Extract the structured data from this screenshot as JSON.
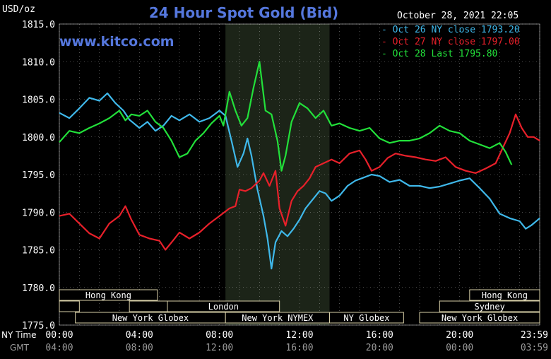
{
  "header": {
    "title": "24 Hour Spot Gold (Bid)",
    "site": "www.kitco.com",
    "timestamp": "October 28, 2021 22:05",
    "units": "USD/oz"
  },
  "colors": {
    "background": "#000000",
    "oct26": "#3fb8ea",
    "oct27": "#e8202a",
    "oct28": "#22e03a",
    "session_shade": "#1c2418",
    "grid": "#ffffff",
    "title": "#5577dd",
    "site": "#5577dd"
  },
  "axis_labels": {
    "ny_time": "NY Time",
    "gmt": "GMT"
  },
  "sessions": [
    {
      "label": "Hong Kong",
      "row": 0,
      "start": 0,
      "end": 4.9
    },
    {
      "label": "",
      "row": 1,
      "start": 0,
      "end": 1.0
    },
    {
      "label": "",
      "row": 1,
      "start": 3.5,
      "end": 5.4
    },
    {
      "label": "London",
      "row": 1,
      "start": 5.4,
      "end": 11.0
    },
    {
      "label": "New York Globex",
      "row": 2,
      "start": 0.8,
      "end": 8.3
    },
    {
      "label": "New York NYMEX",
      "row": 2,
      "start": 8.3,
      "end": 13.5
    },
    {
      "label": "NY Globex",
      "row": 2,
      "start": 13.5,
      "end": 17.2
    },
    {
      "label": "Hong Kong",
      "row": 0,
      "start": 20.5,
      "end": 24.0
    },
    {
      "label": "Sydney",
      "row": 1,
      "start": 19.0,
      "end": 24.0
    },
    {
      "label": "New York Globex",
      "row": 2,
      "start": 18.0,
      "end": 24.0
    }
  ],
  "chart_data": {
    "type": "line",
    "title": "24 Hour Spot Gold (Bid)",
    "ylabel": "USD/oz",
    "xlabel": "NY Time",
    "xlim": [
      0,
      24
    ],
    "ylim": [
      1775,
      1815
    ],
    "yticks": [
      "1815.0",
      "1810.0",
      "1805.0",
      "1800.0",
      "1795.0",
      "1790.0",
      "1785.0",
      "1780.0",
      "1775.0"
    ],
    "ny_ticks": [
      "00:00",
      "04:00",
      "08:00",
      "12:00",
      "16:00",
      "20:00",
      "23:59"
    ],
    "gmt_ticks": [
      "04:00",
      "08:00",
      "12:00",
      "16:00",
      "20:00",
      "00:00",
      "03:59"
    ],
    "shaded_region": [
      8.3,
      13.5
    ],
    "grid": true,
    "legend_position": "top-right",
    "series": [
      {
        "name": "Oct 26",
        "label": "Oct 26 NY close 1793.20",
        "color": "#3fb8ea",
        "points": [
          [
            0,
            1803.2
          ],
          [
            0.5,
            1802.5
          ],
          [
            1,
            1803.8
          ],
          [
            1.5,
            1805.2
          ],
          [
            2,
            1804.8
          ],
          [
            2.4,
            1805.8
          ],
          [
            2.8,
            1804.5
          ],
          [
            3.2,
            1803.5
          ],
          [
            3.5,
            1802.3
          ],
          [
            4,
            1801.2
          ],
          [
            4.4,
            1802.0
          ],
          [
            4.8,
            1800.8
          ],
          [
            5.2,
            1801.5
          ],
          [
            5.6,
            1802.8
          ],
          [
            6,
            1802.2
          ],
          [
            6.5,
            1803.0
          ],
          [
            7,
            1802.0
          ],
          [
            7.5,
            1802.5
          ],
          [
            8,
            1803.5
          ],
          [
            8.3,
            1802.8
          ],
          [
            8.6,
            1799.5
          ],
          [
            8.9,
            1796.0
          ],
          [
            9.2,
            1797.8
          ],
          [
            9.4,
            1799.8
          ],
          [
            9.6,
            1797.5
          ],
          [
            9.9,
            1793.0
          ],
          [
            10.2,
            1789.5
          ],
          [
            10.4,
            1786.5
          ],
          [
            10.6,
            1782.5
          ],
          [
            10.8,
            1786.0
          ],
          [
            11.1,
            1787.5
          ],
          [
            11.4,
            1786.8
          ],
          [
            11.7,
            1787.8
          ],
          [
            12,
            1789.0
          ],
          [
            12.3,
            1790.5
          ],
          [
            12.6,
            1791.5
          ],
          [
            13,
            1792.8
          ],
          [
            13.3,
            1792.5
          ],
          [
            13.6,
            1791.5
          ],
          [
            14,
            1792.2
          ],
          [
            14.4,
            1793.5
          ],
          [
            14.8,
            1794.2
          ],
          [
            15.2,
            1794.6
          ],
          [
            15.6,
            1795.0
          ],
          [
            16,
            1794.8
          ],
          [
            16.5,
            1794.0
          ],
          [
            17,
            1794.3
          ],
          [
            17.5,
            1793.5
          ],
          [
            18,
            1793.5
          ],
          [
            18.5,
            1793.2
          ],
          [
            19,
            1793.4
          ],
          [
            19.5,
            1793.8
          ],
          [
            20,
            1794.2
          ],
          [
            20.5,
            1794.5
          ],
          [
            21,
            1793.2
          ],
          [
            21.5,
            1791.8
          ],
          [
            22,
            1789.8
          ],
          [
            22.5,
            1789.2
          ],
          [
            23,
            1788.8
          ],
          [
            23.3,
            1787.8
          ],
          [
            23.6,
            1788.3
          ],
          [
            24,
            1789.2
          ]
        ]
      },
      {
        "name": "Oct 27",
        "label": "Oct 27 NY close 1797.00",
        "color": "#e8202a",
        "points": [
          [
            0,
            1789.5
          ],
          [
            0.5,
            1789.8
          ],
          [
            1,
            1788.5
          ],
          [
            1.5,
            1787.2
          ],
          [
            2,
            1786.5
          ],
          [
            2.5,
            1788.5
          ],
          [
            3,
            1789.5
          ],
          [
            3.3,
            1790.8
          ],
          [
            3.6,
            1789.0
          ],
          [
            4,
            1787.0
          ],
          [
            4.5,
            1786.5
          ],
          [
            5,
            1786.2
          ],
          [
            5.3,
            1785.0
          ],
          [
            5.7,
            1786.3
          ],
          [
            6,
            1787.3
          ],
          [
            6.5,
            1786.5
          ],
          [
            7,
            1787.3
          ],
          [
            7.5,
            1788.5
          ],
          [
            8,
            1789.5
          ],
          [
            8.5,
            1790.5
          ],
          [
            8.8,
            1790.8
          ],
          [
            9,
            1793.0
          ],
          [
            9.3,
            1792.8
          ],
          [
            9.6,
            1793.2
          ],
          [
            10,
            1794.2
          ],
          [
            10.2,
            1795.2
          ],
          [
            10.5,
            1793.5
          ],
          [
            10.8,
            1795.5
          ],
          [
            11,
            1790.5
          ],
          [
            11.3,
            1788.2
          ],
          [
            11.6,
            1791.5
          ],
          [
            11.9,
            1792.8
          ],
          [
            12.2,
            1793.5
          ],
          [
            12.5,
            1794.5
          ],
          [
            12.8,
            1796.0
          ],
          [
            13.2,
            1796.5
          ],
          [
            13.6,
            1797.0
          ],
          [
            14,
            1796.5
          ],
          [
            14.5,
            1797.8
          ],
          [
            15,
            1798.2
          ],
          [
            15.3,
            1797.0
          ],
          [
            15.6,
            1795.5
          ],
          [
            16,
            1796.0
          ],
          [
            16.4,
            1797.2
          ],
          [
            16.8,
            1797.8
          ],
          [
            17.3,
            1797.5
          ],
          [
            17.8,
            1797.3
          ],
          [
            18.3,
            1797.0
          ],
          [
            18.8,
            1796.8
          ],
          [
            19.3,
            1797.3
          ],
          [
            19.8,
            1796.0
          ],
          [
            20.3,
            1795.5
          ],
          [
            20.8,
            1795.2
          ],
          [
            21.3,
            1795.8
          ],
          [
            21.8,
            1796.5
          ],
          [
            22.2,
            1798.8
          ],
          [
            22.5,
            1800.5
          ],
          [
            22.8,
            1803.0
          ],
          [
            23.1,
            1801.2
          ],
          [
            23.4,
            1800.0
          ],
          [
            23.7,
            1800.0
          ],
          [
            24,
            1799.5
          ]
        ]
      },
      {
        "name": "Oct 28",
        "label": "Oct 28 Last 1795.80",
        "color": "#22e03a",
        "points": [
          [
            0,
            1799.3
          ],
          [
            0.5,
            1800.8
          ],
          [
            1,
            1800.5
          ],
          [
            1.5,
            1801.2
          ],
          [
            2,
            1801.8
          ],
          [
            2.5,
            1802.5
          ],
          [
            3,
            1803.5
          ],
          [
            3.3,
            1802.2
          ],
          [
            3.6,
            1803.0
          ],
          [
            4,
            1802.8
          ],
          [
            4.4,
            1803.5
          ],
          [
            4.8,
            1802.0
          ],
          [
            5.2,
            1801.2
          ],
          [
            5.6,
            1799.5
          ],
          [
            6,
            1797.3
          ],
          [
            6.4,
            1797.8
          ],
          [
            6.8,
            1799.5
          ],
          [
            7.2,
            1800.5
          ],
          [
            7.6,
            1801.8
          ],
          [
            8,
            1802.8
          ],
          [
            8.2,
            1801.5
          ],
          [
            8.5,
            1806.0
          ],
          [
            8.8,
            1803.5
          ],
          [
            9.1,
            1801.5
          ],
          [
            9.4,
            1802.5
          ],
          [
            9.7,
            1806.5
          ],
          [
            10,
            1810.0
          ],
          [
            10.3,
            1803.5
          ],
          [
            10.6,
            1803.0
          ],
          [
            10.9,
            1799.5
          ],
          [
            11.1,
            1795.5
          ],
          [
            11.3,
            1797.5
          ],
          [
            11.6,
            1802.0
          ],
          [
            12,
            1804.5
          ],
          [
            12.4,
            1803.8
          ],
          [
            12.8,
            1802.5
          ],
          [
            13.2,
            1803.5
          ],
          [
            13.6,
            1801.5
          ],
          [
            14,
            1801.8
          ],
          [
            14.5,
            1801.2
          ],
          [
            15,
            1800.8
          ],
          [
            15.5,
            1801.2
          ],
          [
            16,
            1799.8
          ],
          [
            16.5,
            1799.2
          ],
          [
            17,
            1799.5
          ],
          [
            17.5,
            1799.5
          ],
          [
            18,
            1799.8
          ],
          [
            18.5,
            1800.5
          ],
          [
            19,
            1801.5
          ],
          [
            19.5,
            1800.8
          ],
          [
            20,
            1800.5
          ],
          [
            20.5,
            1799.5
          ],
          [
            21,
            1799.0
          ],
          [
            21.5,
            1798.5
          ],
          [
            22,
            1799.2
          ],
          [
            22.3,
            1798.0
          ],
          [
            22.6,
            1796.3
          ]
        ]
      }
    ]
  }
}
